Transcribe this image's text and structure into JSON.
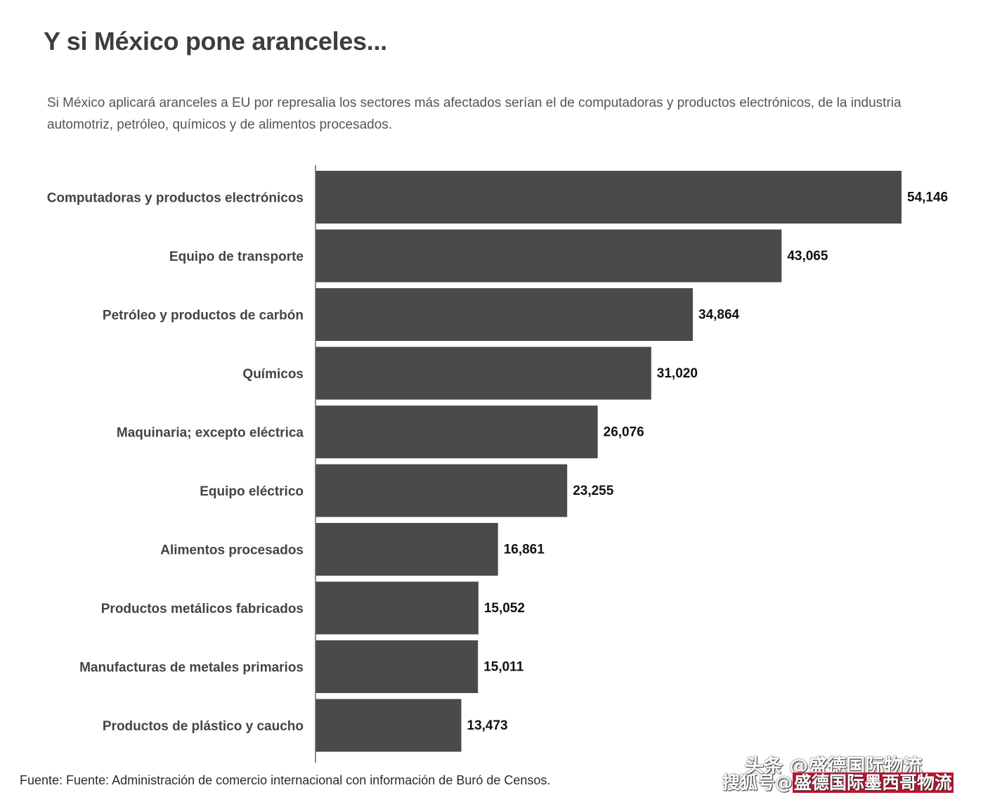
{
  "header": {
    "title": "Y si México pone aranceles...",
    "subtitle": "Si México aplicará aranceles a EU por represalia los sectores más afectados serían el de computadoras y productos electrónicos, de la industria automotriz, petróleo, químicos y de alimentos procesados."
  },
  "footer": {
    "source": "Fuente: Fuente: Administración de comercio internacional con información de Buró de Censos."
  },
  "watermark": {
    "line1": "头条 @盛德国际物流",
    "line2_prefix": "搜狐号@",
    "line2_highlight": "盛德国际墨西哥物流"
  },
  "colors": {
    "bar": "#4a4a4a",
    "axis": "#666666",
    "label": "#444444",
    "value": "#111111"
  },
  "chart_data": {
    "type": "bar",
    "orientation": "horizontal",
    "categories": [
      "Computadoras y productos electrónicos",
      "Equipo de transporte",
      "Petróleo y productos de carbón",
      "Químicos",
      "Maquinaria; excepto eléctrica",
      "Equipo eléctrico",
      "Alimentos procesados",
      "Productos metálicos fabricados",
      "Manufacturas de metales primarios",
      "Productos de plástico y caucho"
    ],
    "values": [
      54146,
      43065,
      34864,
      31020,
      26076,
      23255,
      16861,
      15052,
      15011,
      13473
    ],
    "value_labels": [
      "54,146",
      "43,065",
      "34,864",
      "31,020",
      "26,076",
      "23,255",
      "16,861",
      "15,052",
      "15,011",
      "13,473"
    ],
    "xlim": [
      0,
      54146
    ],
    "grid": false,
    "legend": "none"
  }
}
